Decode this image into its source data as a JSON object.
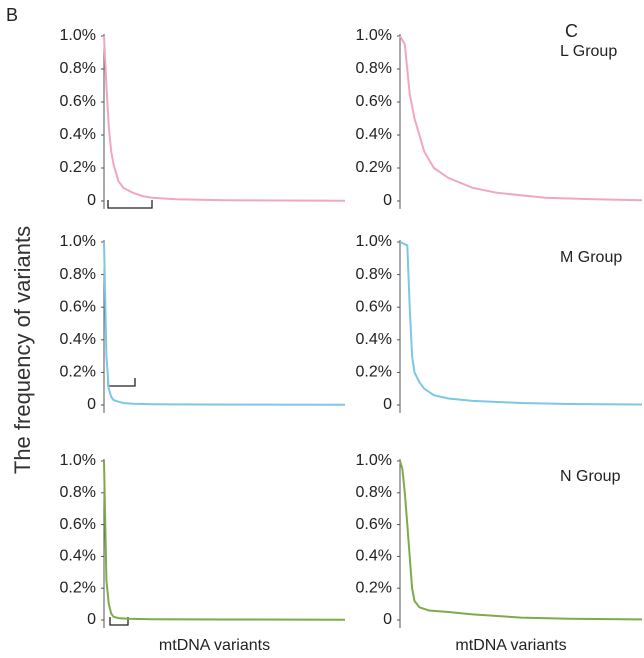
{
  "labels": {
    "left": "B",
    "right": "C",
    "y_axis": "The frequency of variants"
  },
  "chart_data": [
    {
      "type": "line",
      "color": "#f2a6bf",
      "xlim": [
        0,
        100
      ],
      "ylim": [
        0,
        1.0
      ],
      "yticks": [
        0,
        {
          "value": 0.2,
          "label": "0.2%"
        },
        {
          "value": 0.4,
          "label": "0.4%"
        },
        {
          "value": 0.6,
          "label": "0.6%"
        },
        {
          "value": 0.8,
          "label": "0.8%"
        },
        {
          "value": 1.0,
          "label": "1.0%"
        }
      ],
      "x": [
        0,
        1,
        2,
        3,
        4,
        6,
        8,
        12,
        16,
        20,
        30,
        50,
        100
      ],
      "values": [
        1.0,
        0.7,
        0.45,
        0.3,
        0.22,
        0.12,
        0.08,
        0.05,
        0.03,
        0.02,
        0.01,
        0.005,
        0.002
      ]
    },
    {
      "type": "line",
      "color": "#f2a6bf",
      "title": "L Group",
      "xlim": [
        0,
        100
      ],
      "ylim": [
        0,
        1.0
      ],
      "yticks": [
        0,
        {
          "value": 0.2,
          "label": "0.2%"
        },
        {
          "value": 0.4,
          "label": "0.4%"
        },
        {
          "value": 0.6,
          "label": "0.6%"
        },
        {
          "value": 0.8,
          "label": "0.8%"
        },
        {
          "value": 1.0,
          "label": "1.0%"
        }
      ],
      "x": [
        0,
        2,
        4,
        6,
        8,
        10,
        14,
        20,
        30,
        40,
        60,
        80,
        100
      ],
      "values": [
        1.0,
        0.95,
        0.65,
        0.5,
        0.4,
        0.3,
        0.2,
        0.14,
        0.08,
        0.05,
        0.02,
        0.01,
        0.005
      ]
    },
    {
      "type": "line",
      "color": "#7ec6e6",
      "xlim": [
        0,
        100
      ],
      "ylim": [
        0,
        1.0
      ],
      "yticks": [
        0,
        {
          "value": 0.2,
          "label": "0.2%"
        },
        {
          "value": 0.4,
          "label": "0.4%"
        },
        {
          "value": 0.6,
          "label": "0.6%"
        },
        {
          "value": 0.8,
          "label": "0.8%"
        },
        {
          "value": 1.0,
          "label": "1.0%"
        }
      ],
      "x": [
        0,
        1,
        2,
        3,
        4,
        6,
        8,
        12,
        20,
        40,
        100
      ],
      "values": [
        1.0,
        0.3,
        0.1,
        0.05,
        0.03,
        0.02,
        0.012,
        0.008,
        0.005,
        0.003,
        0.002
      ]
    },
    {
      "type": "line",
      "color": "#7ec6e6",
      "title": "M Group",
      "xlim": [
        0,
        100
      ],
      "ylim": [
        0,
        1.0
      ],
      "yticks": [
        0,
        {
          "value": 0.2,
          "label": "0.2%"
        },
        {
          "value": 0.4,
          "label": "0.4%"
        },
        {
          "value": 0.6,
          "label": "0.6%"
        },
        {
          "value": 0.8,
          "label": "0.8%"
        },
        {
          "value": 1.0,
          "label": "1.0%"
        }
      ],
      "x": [
        0,
        3,
        4,
        5,
        6,
        8,
        10,
        14,
        20,
        30,
        50,
        70,
        100
      ],
      "values": [
        1.0,
        0.98,
        0.6,
        0.3,
        0.2,
        0.14,
        0.1,
        0.06,
        0.04,
        0.025,
        0.012,
        0.006,
        0.003
      ]
    },
    {
      "type": "line",
      "color": "#7daa4a",
      "xlim": [
        0,
        100
      ],
      "ylim": [
        0,
        1.0
      ],
      "yticks": [
        0,
        {
          "value": 0.2,
          "label": "0.2%"
        },
        {
          "value": 0.4,
          "label": "0.4%"
        },
        {
          "value": 0.6,
          "label": "0.6%"
        },
        {
          "value": 0.8,
          "label": "0.8%"
        },
        {
          "value": 1.0,
          "label": "1.0%"
        }
      ],
      "x": [
        0,
        1,
        2,
        3,
        4,
        6,
        10,
        20,
        50,
        100
      ],
      "values": [
        1.0,
        0.25,
        0.1,
        0.04,
        0.02,
        0.012,
        0.008,
        0.005,
        0.003,
        0.002
      ],
      "x_label": "mtDNA variants"
    },
    {
      "type": "line",
      "color": "#7daa4a",
      "title": "N Group",
      "xlim": [
        0,
        100
      ],
      "ylim": [
        0,
        1.0
      ],
      "yticks": [
        0,
        {
          "value": 0.2,
          "label": "0.2%"
        },
        {
          "value": 0.4,
          "label": "0.4%"
        },
        {
          "value": 0.6,
          "label": "0.6%"
        },
        {
          "value": 0.8,
          "label": "0.8%"
        },
        {
          "value": 1.0,
          "label": "1.0%"
        }
      ],
      "x": [
        0,
        1,
        2,
        3,
        4,
        5,
        6,
        8,
        12,
        20,
        30,
        50,
        70,
        100
      ],
      "values": [
        1.0,
        0.95,
        0.8,
        0.6,
        0.4,
        0.2,
        0.12,
        0.08,
        0.06,
        0.05,
        0.035,
        0.015,
        0.008,
        0.004
      ],
      "x_label": "mtDNA variants"
    }
  ]
}
